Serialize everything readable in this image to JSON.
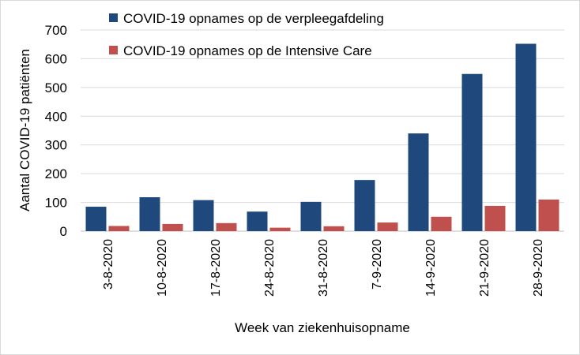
{
  "chart_data": {
    "type": "bar",
    "xlabel": "Week van ziekenhuisopname",
    "ylabel": "Aantal COVID-19 patiënten",
    "ylim": [
      0,
      700
    ],
    "yticks": [
      0,
      100,
      200,
      300,
      400,
      500,
      600,
      700
    ],
    "grid": true,
    "legend_position": "top-center",
    "categories": [
      "3-8-2020",
      "10-8-2020",
      "17-8-2020",
      "24-8-2020",
      "31-8-2020",
      "7-9-2020",
      "14-9-2020",
      "21-9-2020",
      "28-9-2020"
    ],
    "series": [
      {
        "name": "COVID-19 opnames op de verpleegafdeling",
        "color": "#1f497d",
        "values": [
          85,
          118,
          108,
          68,
          102,
          178,
          340,
          547,
          652
        ]
      },
      {
        "name": "COVID-19 opnames op de Intensive Care",
        "color": "#c0504d",
        "values": [
          18,
          25,
          28,
          12,
          17,
          30,
          50,
          88,
          110
        ]
      }
    ]
  }
}
